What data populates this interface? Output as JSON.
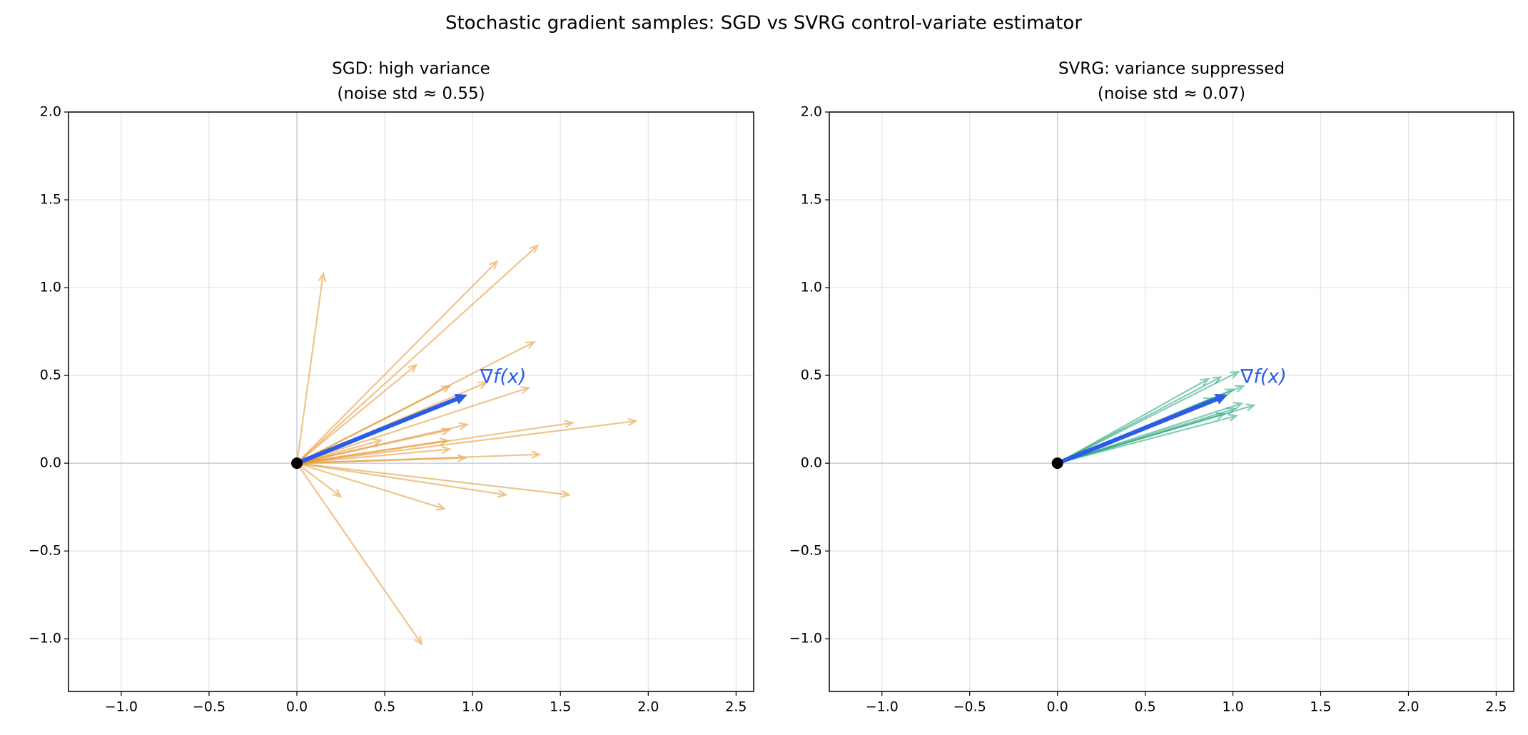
{
  "figure_title": "Stochastic gradient samples: SGD vs SVRG control-variate estimator",
  "chart_data": [
    {
      "type": "quiver",
      "title": "SGD: high variance",
      "subtitle": "(noise std ≈ 0.55)",
      "xlim": [
        -1.3,
        2.6
      ],
      "ylim": [
        -1.3,
        2.0
      ],
      "xticks": [
        {
          "value": -1.0,
          "label": "−1.0"
        },
        {
          "value": -0.5,
          "label": "−0.5"
        },
        {
          "value": 0,
          "label": "0.0"
        },
        0.5,
        {
          "value": 1,
          "label": "1.0"
        },
        1.5,
        {
          "value": 2,
          "label": "2.0"
        },
        2.5
      ],
      "yticks": [
        {
          "value": -1.0,
          "label": "−1.0"
        },
        {
          "value": -0.5,
          "label": "−0.5"
        },
        {
          "value": 0,
          "label": "0.0"
        },
        0.5,
        {
          "value": 1,
          "label": "1.0"
        },
        1.5,
        {
          "value": 2,
          "label": "2.0"
        }
      ],
      "grid": true,
      "samples": {
        "color": "#e5952f",
        "x": [
          0.15,
          1.37,
          1.14,
          1.35,
          0.68,
          1.32,
          0.87,
          1.08,
          1.93,
          1.57,
          0.97,
          0.87,
          0.86,
          0.87,
          0.48,
          0.96,
          1.38,
          1.55,
          1.19,
          0.84,
          0.25,
          0.71
        ],
        "y": [
          1.08,
          1.24,
          1.15,
          0.69,
          0.56,
          0.43,
          0.44,
          0.46,
          0.24,
          0.23,
          0.22,
          0.19,
          0.13,
          0.08,
          0.13,
          0.03,
          0.05,
          -0.18,
          -0.18,
          -0.26,
          -0.19,
          -1.03
        ]
      },
      "gradient": {
        "x": 0.97,
        "y": 0.39,
        "color": "#2b5ce6",
        "label": "∇f(x)"
      },
      "origin": {
        "x": 0,
        "y": 0,
        "color": "#000000"
      }
    },
    {
      "type": "quiver",
      "title": "SVRG: variance suppressed",
      "subtitle": "(noise std ≈ 0.07)",
      "xlim": [
        -1.3,
        2.6
      ],
      "ylim": [
        -1.3,
        2.0
      ],
      "xticks": [
        {
          "value": -1.0,
          "label": "−1.0"
        },
        {
          "value": -0.5,
          "label": "−0.5"
        },
        {
          "value": 0,
          "label": "0.0"
        },
        0.5,
        {
          "value": 1,
          "label": "1.0"
        },
        1.5,
        {
          "value": 2,
          "label": "2.0"
        },
        2.5
      ],
      "yticks": [
        {
          "value": -1.0,
          "label": "−1.0"
        },
        {
          "value": -0.5,
          "label": "−0.5"
        },
        {
          "value": 0,
          "label": "0.0"
        },
        0.5,
        {
          "value": 1,
          "label": "1.0"
        },
        1.5,
        {
          "value": 2,
          "label": "2.0"
        }
      ],
      "grid": true,
      "samples": {
        "color": "#23a47a",
        "x": [
          1.03,
          0.93,
          0.86,
          1.0,
          1.06,
          0.94,
          1.12,
          1.05,
          1.01,
          1.02,
          0.95,
          0.88
        ],
        "y": [
          0.52,
          0.49,
          0.48,
          0.42,
          0.44,
          0.39,
          0.33,
          0.34,
          0.31,
          0.27,
          0.28,
          0.37
        ]
      },
      "gradient": {
        "x": 0.97,
        "y": 0.39,
        "color": "#2b5ce6",
        "label": "∇f(x)"
      },
      "origin": {
        "x": 0,
        "y": 0,
        "color": "#000000"
      }
    }
  ]
}
